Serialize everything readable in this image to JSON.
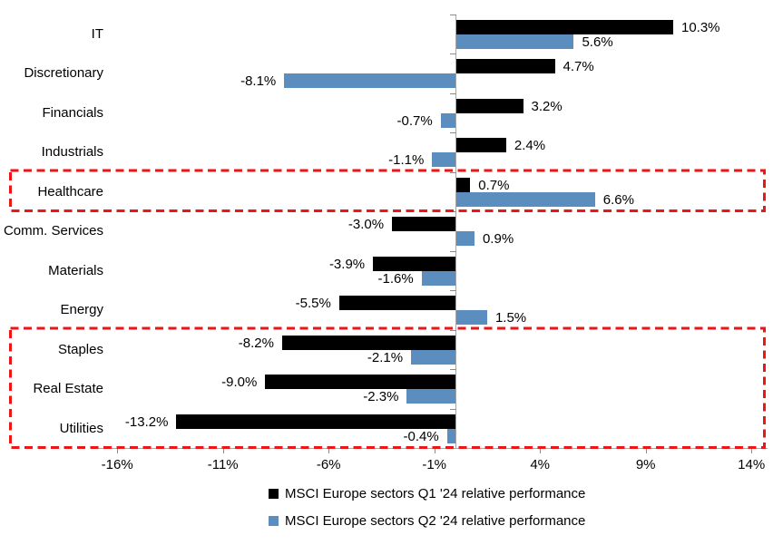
{
  "chart_data": {
    "type": "bar",
    "orientation": "horizontal",
    "title": "",
    "categories": [
      "IT",
      "Discretionary",
      "Financials",
      "Industrials",
      "Healthcare",
      "Comm. Services",
      "Materials",
      "Energy",
      "Staples",
      "Real Estate",
      "Utilities"
    ],
    "series": [
      {
        "name": "MSCI Europe sectors Q1 '24 relative performance",
        "color": "#000000",
        "values": [
          10.3,
          4.7,
          3.2,
          2.4,
          0.7,
          -3.0,
          -3.9,
          -5.5,
          -8.2,
          -9.0,
          -13.2
        ]
      },
      {
        "name": "MSCI Europe sectors Q2 '24 relative performance",
        "color": "#5B8DBE",
        "values": [
          5.6,
          -8.1,
          -0.7,
          -1.1,
          6.6,
          0.9,
          -1.6,
          1.5,
          -2.1,
          -2.3,
          -0.4
        ]
      }
    ],
    "data_label_format": "0.0%",
    "x_ticks": [
      {
        "value": -16,
        "label": "-16%"
      },
      {
        "value": -11,
        "label": "-11%"
      },
      {
        "value": -6,
        "label": "-6%"
      },
      {
        "value": -1,
        "label": "-1%"
      },
      {
        "value": 4,
        "label": "4%"
      },
      {
        "value": 9,
        "label": "9%"
      },
      {
        "value": 14,
        "label": "14%"
      }
    ],
    "xlim": [
      -16.9,
      14.8
    ],
    "grid": "off",
    "legend_position": "bottom",
    "axis_color": "#A6A6A6",
    "highlights": [
      {
        "from": "Healthcare",
        "to": "Healthcare",
        "color": "#EE1515",
        "style": "dashed"
      },
      {
        "from": "Staples",
        "to": "Utilities",
        "color": "#EE1515",
        "style": "dashed"
      }
    ]
  }
}
